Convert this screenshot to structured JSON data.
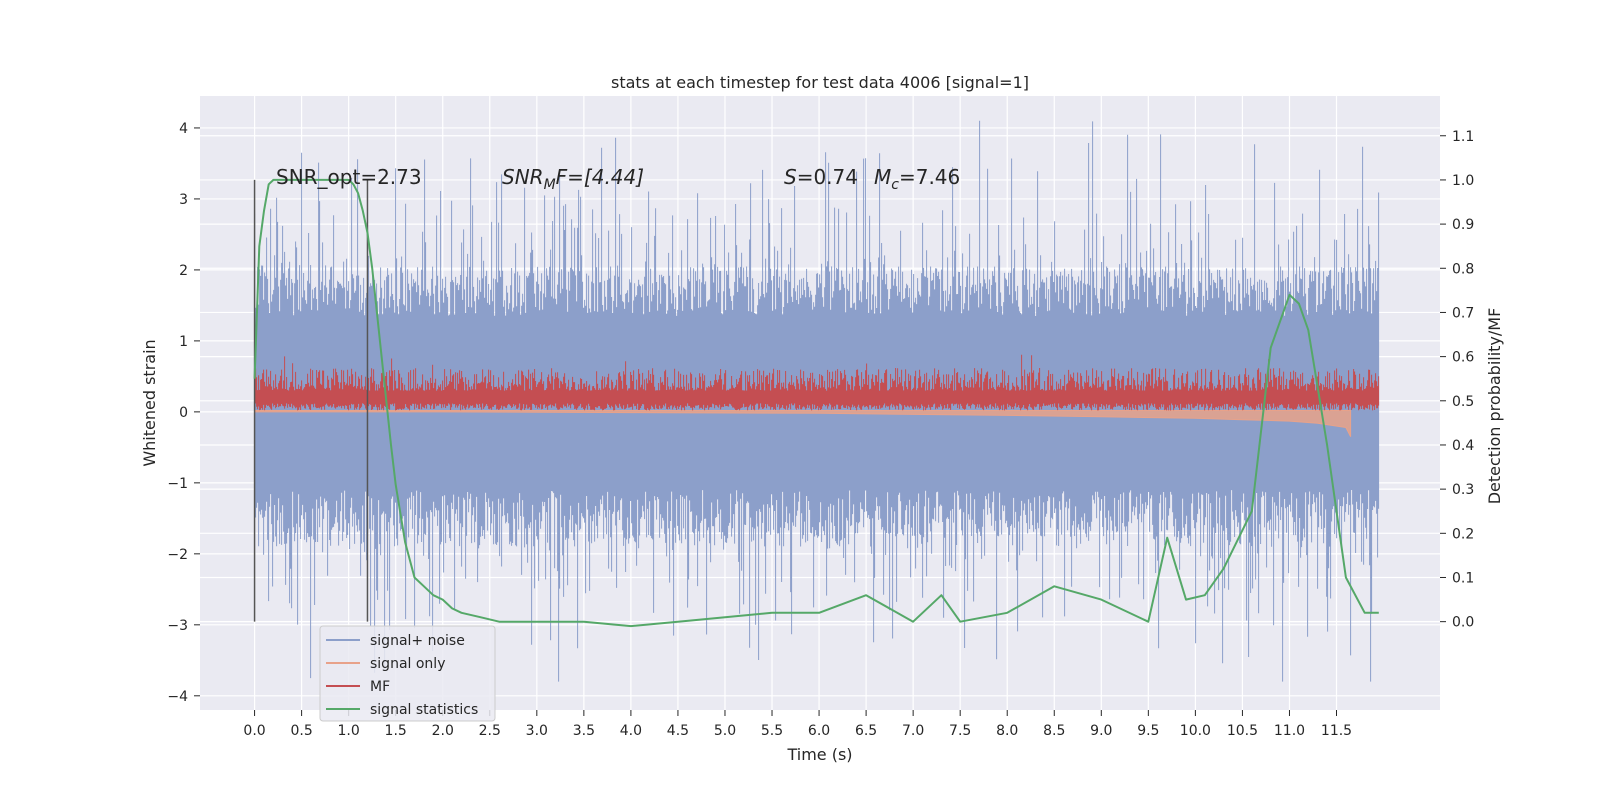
{
  "chart_data": {
    "type": "line",
    "title": "stats at each timestep for test data 4006 [signal=1]",
    "xlabel": "Time (s)",
    "ylabel": "Whitened strain",
    "y2label": "Detection probability/MF",
    "xlim": [
      -0.58,
      12.6
    ],
    "ylim": [
      -4.2,
      4.45
    ],
    "y2lim": [
      -0.2,
      1.19
    ],
    "x_ticks": [
      "0.0",
      "0.5",
      "1.0",
      "1.5",
      "2.0",
      "2.5",
      "3.0",
      "3.5",
      "4.0",
      "4.5",
      "5.0",
      "5.5",
      "6.0",
      "6.5",
      "7.0",
      "7.5",
      "8.0",
      "8.5",
      "9.0",
      "9.5",
      "10.0",
      "10.5",
      "11.0",
      "11.5"
    ],
    "y_ticks": [
      "4",
      "3",
      "2",
      "1",
      "0",
      "−1",
      "−2",
      "−3",
      "−4"
    ],
    "y2_ticks": [
      "1.1",
      "1.0",
      "0.9",
      "0.8",
      "0.7",
      "0.6",
      "0.5",
      "0.4",
      "0.3",
      "0.2",
      "0.1",
      "0.0"
    ],
    "grid": true,
    "legend_position": "lower-left",
    "annotations": {
      "snr_opt": "SNR_opt=2.73",
      "snr_mf_name": "SNR",
      "snr_mf_sub": "M",
      "snr_mf_rest": "F=[4.44]",
      "s_name": "S",
      "s_val": "=0.74",
      "mc_name": "M",
      "mc_sub": "c",
      "mc_val": "=7.46"
    },
    "vertical_markers": [
      0.0,
      1.2
    ],
    "series": [
      {
        "name": "signal+ noise",
        "color": "#8c9fca",
        "envelope": {
          "x_range": [
            0.0,
            11.95
          ],
          "core_band": [
            -1.1,
            1.35
          ],
          "upper_fraction": 0.28,
          "lower_fraction": 0.28
        }
      },
      {
        "name": "signal only",
        "color": "#e8a28a",
        "values_x": [
          0.0,
          2.0,
          4.0,
          6.0,
          8.0,
          9.0,
          10.0,
          10.5,
          11.0,
          11.3,
          11.6,
          11.65
        ],
        "values_y": [
          0.0,
          0.0,
          -0.01,
          -0.02,
          -0.05,
          -0.07,
          -0.09,
          -0.11,
          -0.13,
          -0.16,
          -0.22,
          -0.35
        ]
      },
      {
        "name": "MF",
        "color": "#c44e52",
        "band": [
          0.02,
          0.6
        ]
      },
      {
        "name": "signal statistics",
        "color": "#55a868",
        "x": [
          0.0,
          0.05,
          0.1,
          0.15,
          0.2,
          0.3,
          0.5,
          0.7,
          0.9,
          1.0,
          1.05,
          1.1,
          1.15,
          1.2,
          1.25,
          1.3,
          1.35,
          1.4,
          1.45,
          1.5,
          1.6,
          1.7,
          1.8,
          1.9,
          2.0,
          2.1,
          2.2,
          2.4,
          2.6,
          2.8,
          3.0,
          3.5,
          4.0,
          4.5,
          5.0,
          5.5,
          6.0,
          6.5,
          7.0,
          7.3,
          7.5,
          8.0,
          8.5,
          9.0,
          9.5,
          9.7,
          9.9,
          10.1,
          10.3,
          10.6,
          10.8,
          11.0,
          11.1,
          11.2,
          11.4,
          11.6,
          11.8,
          11.95
        ],
        "y": [
          0.55,
          0.85,
          0.93,
          0.99,
          1.0,
          1.0,
          1.0,
          1.0,
          1.0,
          1.0,
          0.99,
          0.97,
          0.93,
          0.88,
          0.8,
          0.7,
          0.6,
          0.5,
          0.4,
          0.31,
          0.18,
          0.1,
          0.08,
          0.06,
          0.05,
          0.03,
          0.02,
          0.01,
          0.0,
          0.0,
          0.0,
          0.0,
          -0.01,
          0.0,
          0.01,
          0.02,
          0.02,
          0.06,
          0.0,
          0.06,
          0.0,
          0.02,
          0.08,
          0.05,
          0.0,
          0.19,
          0.05,
          0.06,
          0.12,
          0.25,
          0.62,
          0.74,
          0.72,
          0.66,
          0.4,
          0.1,
          0.02,
          0.02
        ]
      }
    ]
  }
}
